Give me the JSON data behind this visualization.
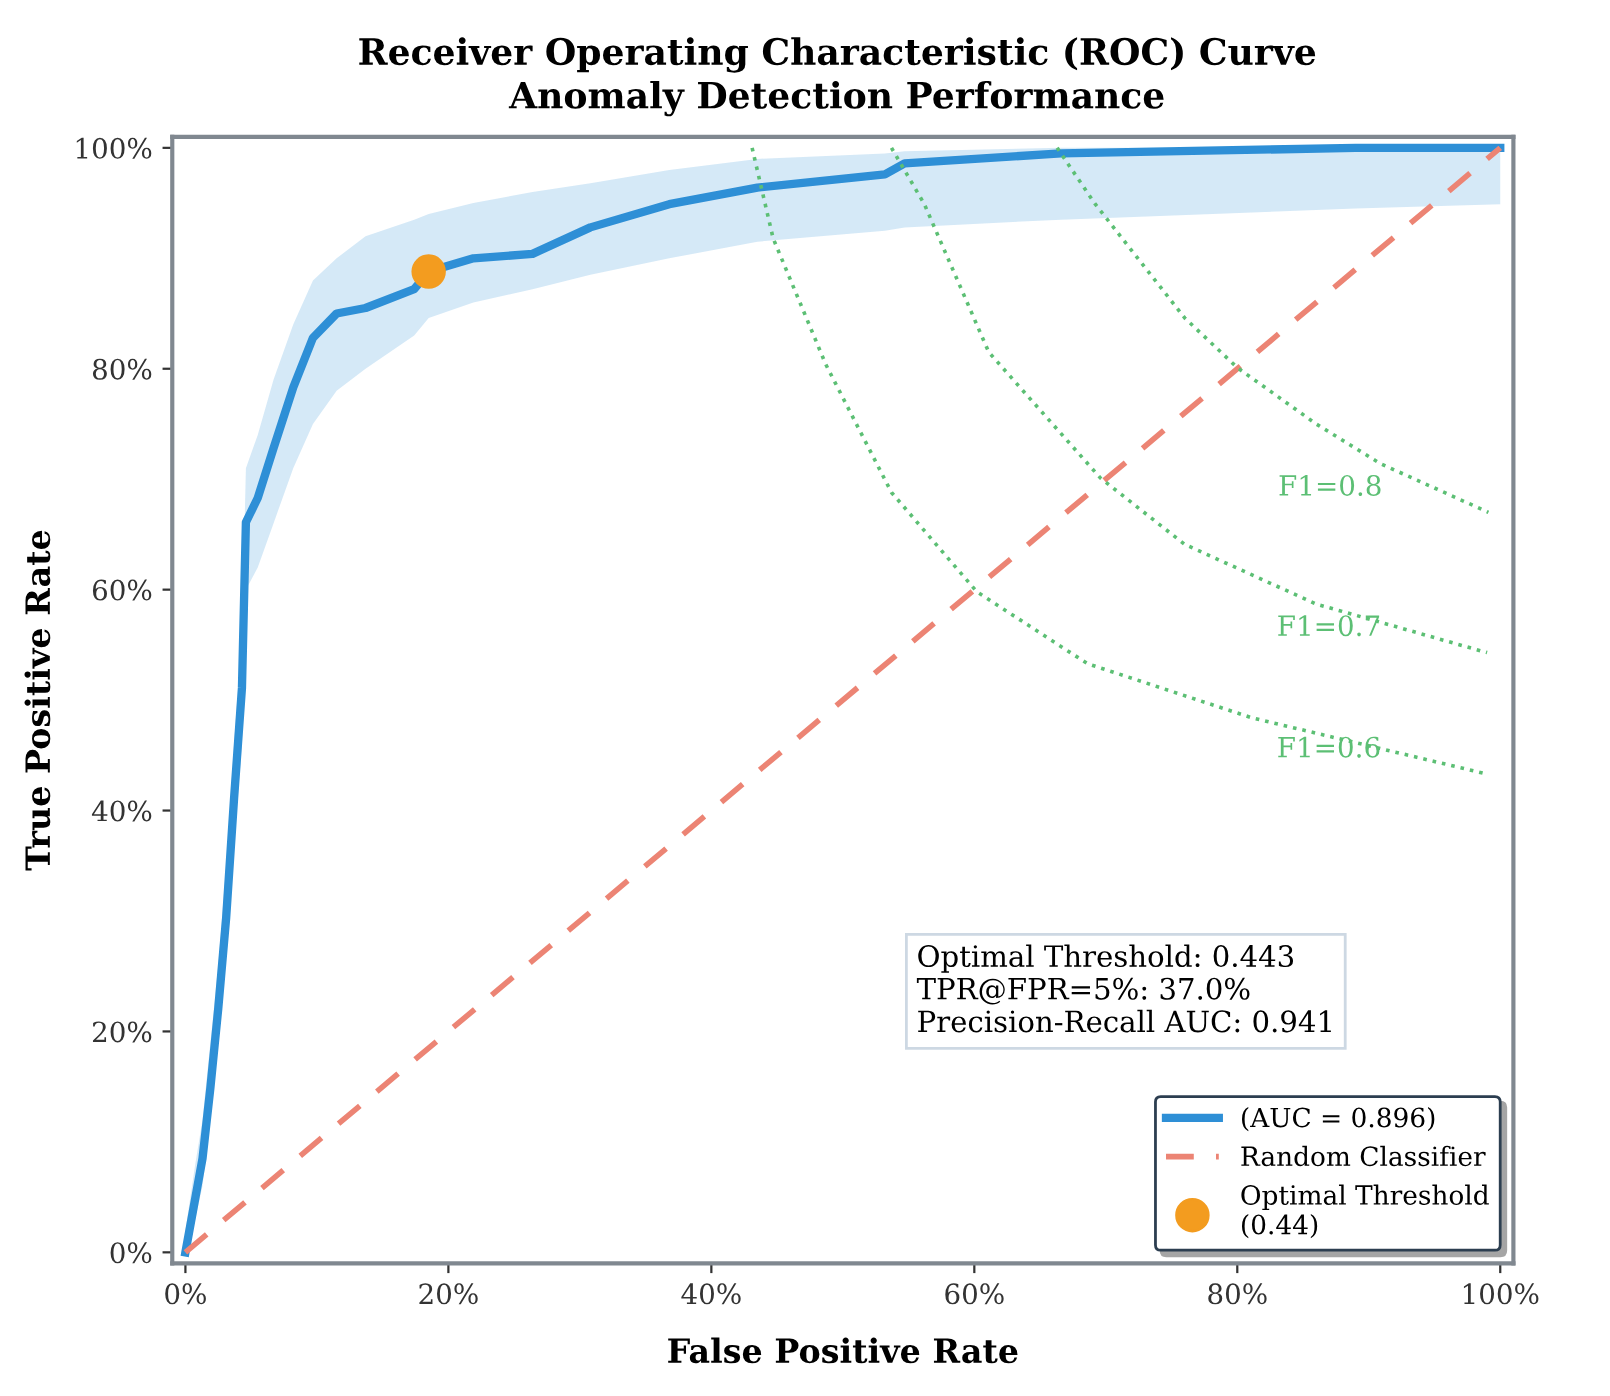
{
  "chart_data": {
    "type": "line",
    "title": "Receiver Operating Characteristic (ROC) Curve",
    "subtitle": "Anomaly Detection Performance",
    "xlabel": "False Positive Rate",
    "ylabel": "True Positive Rate",
    "xlim": [
      -0.01,
      1.01
    ],
    "ylim": [
      -0.01,
      1.01
    ],
    "xticks": [
      {
        "value": 0,
        "label": "0%"
      },
      {
        "value": 0.2,
        "label": "20%"
      },
      {
        "value": 0.4,
        "label": "40%"
      },
      {
        "value": 0.6,
        "label": "60%"
      },
      {
        "value": 0.8,
        "label": "80%"
      },
      {
        "value": 1,
        "label": "100%"
      }
    ],
    "yticks": [
      {
        "value": 0,
        "label": "0%"
      },
      {
        "value": 0.2,
        "label": "20%"
      },
      {
        "value": 0.4,
        "label": "40%"
      },
      {
        "value": 0.6,
        "label": "60%"
      },
      {
        "value": 0.8,
        "label": "80%"
      },
      {
        "value": 1,
        "label": "100%"
      }
    ],
    "grid": false,
    "legend": "bottom right",
    "series": [
      {
        "name": "(AUC = 0.896)",
        "color": "#2e8fd6",
        "x": [
          0,
          0.0075,
          0.013,
          0.019,
          0.025,
          0.031,
          0.037,
          0.043,
          0.046,
          0.055,
          0.067,
          0.082,
          0.097,
          0.115,
          0.137,
          0.174,
          0.185,
          0.219,
          0.264,
          0.308,
          0.368,
          0.435,
          0.532,
          0.547,
          0.666,
          0.89,
          1
        ],
        "values": [
          0,
          0.049,
          0.085,
          0.149,
          0.221,
          0.303,
          0.411,
          0.511,
          0.661,
          0.683,
          0.728,
          0.783,
          0.828,
          0.85,
          0.855,
          0.872,
          0.888,
          0.9,
          0.904,
          0.928,
          0.949,
          0.964,
          0.976,
          0.986,
          0.995,
          1,
          1
        ],
        "lower": [
          0,
          0.03,
          0.06,
          0.12,
          0.19,
          0.27,
          0.37,
          0.46,
          0.6,
          0.62,
          0.66,
          0.71,
          0.75,
          0.78,
          0.8,
          0.83,
          0.846,
          0.86,
          0.872,
          0.885,
          0.9,
          0.915,
          0.925,
          0.928,
          0.935,
          0.945,
          0.949
        ],
        "upper": [
          0.02,
          0.08,
          0.12,
          0.19,
          0.26,
          0.35,
          0.46,
          0.56,
          0.71,
          0.74,
          0.79,
          0.84,
          0.88,
          0.9,
          0.92,
          0.935,
          0.94,
          0.95,
          0.96,
          0.968,
          0.98,
          0.99,
          0.995,
          0.997,
          1,
          1,
          1
        ]
      },
      {
        "name": "Random Classifier",
        "color": "#ec8474",
        "line_style": "dashed",
        "x": [
          0,
          1
        ],
        "values": [
          0,
          1
        ]
      },
      {
        "name": "F1=0.6",
        "color": "#5cbf74",
        "line_style": "dotted",
        "x": [
          0.431,
          0.447,
          0.487,
          0.537,
          0.602,
          0.686,
          0.811,
          0.99
        ],
        "values": [
          1,
          0.918,
          0.804,
          0.688,
          0.598,
          0.533,
          0.484,
          0.433
        ]
      },
      {
        "name": "F1=0.7",
        "color": "#5cbf74",
        "line_style": "dotted",
        "x": [
          0.537,
          0.562,
          0.611,
          0.696,
          0.76,
          0.86,
          0.99
        ],
        "values": [
          1,
          0.949,
          0.815,
          0.701,
          0.641,
          0.587,
          0.543
        ]
      },
      {
        "name": "F1=0.8",
        "color": "#5cbf74",
        "line_style": "dotted",
        "x": [
          0.663,
          0.692,
          0.76,
          0.8,
          0.86,
          0.909,
          0.991
        ],
        "values": [
          1,
          0.949,
          0.846,
          0.801,
          0.75,
          0.714,
          0.67
        ]
      },
      {
        "type": "scatter",
        "name": "Optimal Threshold\n(0.44)",
        "color": "#f39c1f",
        "marker": "circle",
        "x": [
          0.185
        ],
        "values": [
          0.888
        ]
      }
    ],
    "annotations": [
      "Optimal Threshold: 0.443\nTPR@FPR=5%: 37.0%\nPrecision-Recall AUC: 0.941"
    ]
  }
}
